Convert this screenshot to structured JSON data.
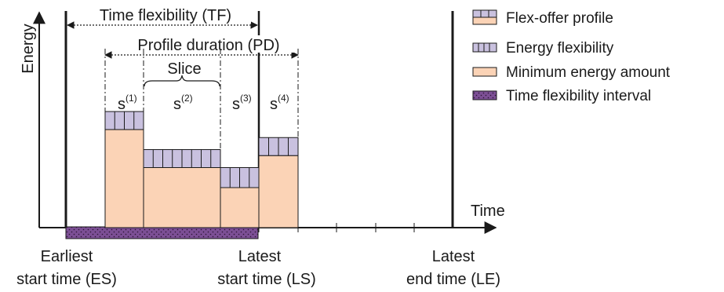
{
  "axes": {
    "y_label": "Energy",
    "x_label": "Time"
  },
  "dimension_labels": {
    "time_flexibility": "Time flexibility (TF)",
    "profile_duration": "Profile duration (PD)",
    "slice": "Slice"
  },
  "slices": [
    {
      "label": "s",
      "superscript": "(1)",
      "min_energy": 4.9,
      "energy_flexibility": 0.9
    },
    {
      "label": "s",
      "superscript": "(2)",
      "min_energy": 3.0,
      "energy_flexibility": 0.9
    },
    {
      "label": "s",
      "superscript": "(3)",
      "min_energy": 2.0,
      "energy_flexibility": 1.0
    },
    {
      "label": "s",
      "superscript": "(4)",
      "min_energy": 3.6,
      "energy_flexibility": 0.9
    }
  ],
  "time_markers": {
    "earliest_start": [
      "Earliest",
      "start time (ES)"
    ],
    "latest_start": [
      "Latest",
      "start time (LS)"
    ],
    "latest_end": [
      "Latest",
      "end time (LE)"
    ]
  },
  "legend": [
    {
      "label": "Flex-offer profile",
      "swatch": "flex-offer-profile"
    },
    {
      "label": "Energy flexibility",
      "swatch": "energy-flexibility"
    },
    {
      "label": "Minimum energy amount",
      "swatch": "minimum-energy"
    },
    {
      "label": "Time flexibility interval",
      "swatch": "time-flexibility-interval"
    }
  ],
  "colors": {
    "min_energy": "#fbd3b6",
    "energy_flex": "#c9c1df",
    "interval": "#7c4f95",
    "stroke": "#1a1a1a"
  }
}
